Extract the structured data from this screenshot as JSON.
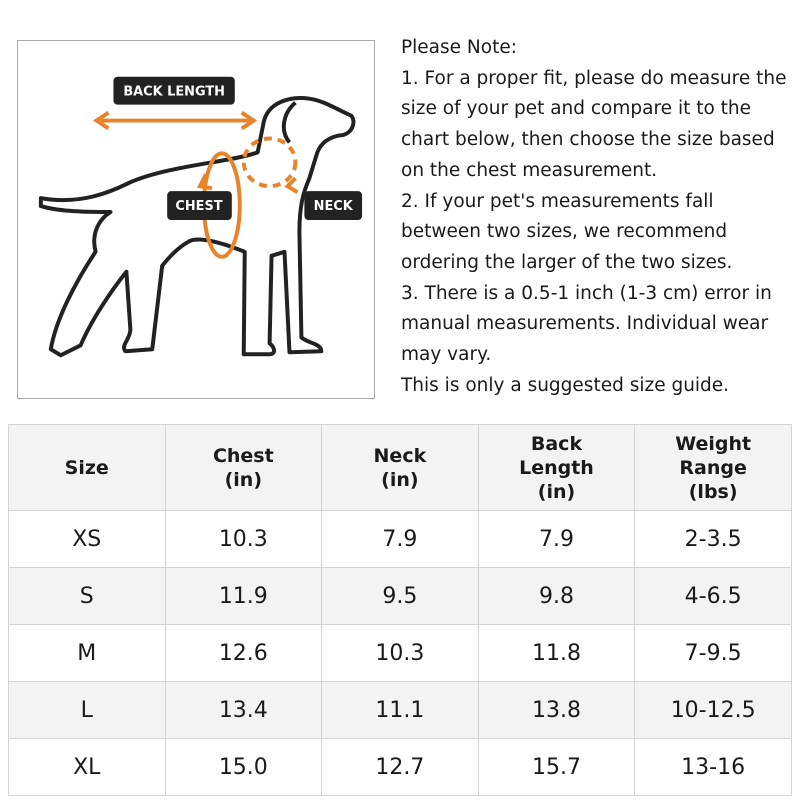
{
  "diagram": {
    "labels": {
      "back_length": "BACK LENGTH",
      "chest": "CHEST",
      "neck": "NECK"
    }
  },
  "note": {
    "title": "Please Note:",
    "paragraphs": [
      "1. For a proper fit, please do measure the size of your pet and compare it to the chart below, then choose the size based on the chest measurement.",
      "2. If your pet's measurements fall between two sizes, we recommend ordering the larger of the two sizes.",
      "3. There is a 0.5-1 inch (1-3 cm) error in manual measurements. Individual wear may vary.",
      "This is only a suggested size guide."
    ]
  },
  "table": {
    "header": [
      [
        "Size"
      ],
      [
        "Chest",
        "(in)"
      ],
      [
        "Neck",
        "(in)"
      ],
      [
        "Back",
        "Length",
        "(in)"
      ],
      [
        "Weight",
        "Range",
        "(lbs)"
      ]
    ],
    "rows": [
      [
        "XS",
        "10.3",
        "7.9",
        "7.9",
        "2-3.5"
      ],
      [
        "S",
        "11.9",
        "9.5",
        "9.8",
        "4-6.5"
      ],
      [
        "M",
        "12.6",
        "10.3",
        "11.8",
        "7-9.5"
      ],
      [
        "L",
        "13.4",
        "11.1",
        "13.8",
        "10-12.5"
      ],
      [
        "XL",
        "15.0",
        "12.7",
        "15.7",
        "13-16"
      ]
    ]
  }
}
